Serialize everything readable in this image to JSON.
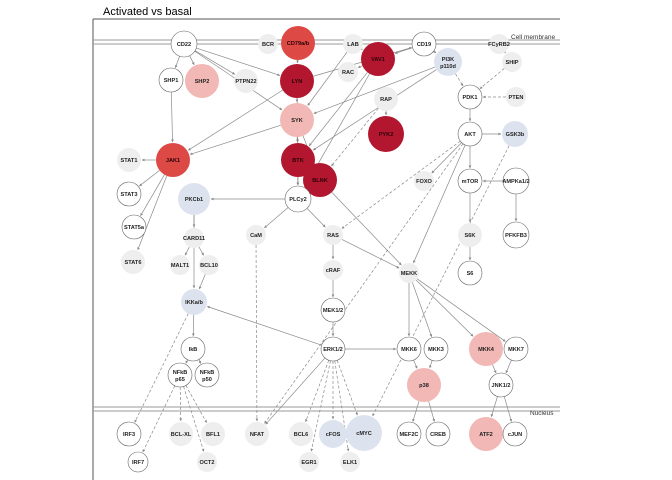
{
  "title": "Activated vs basal",
  "regions": {
    "membrane": "Cell membrane",
    "nucleus": "Nucleus"
  },
  "colors": {
    "white": "#ffffff",
    "grey": "#eeeeee",
    "blue": "#dde3ee",
    "pink_light": "#f1b8b5",
    "red_medium": "#dd4a45",
    "red_dark": "#b3172f",
    "stroke": "#666666"
  },
  "nodes": [
    {
      "id": "CD22",
      "label": "CD22",
      "fill": "white"
    },
    {
      "id": "BCR",
      "label": "BCR",
      "fill": "grey"
    },
    {
      "id": "CD79ab",
      "label": "CD79a/b",
      "fill": "red_medium"
    },
    {
      "id": "LAB",
      "label": "LAB",
      "fill": "grey"
    },
    {
      "id": "VAV1",
      "label": "VAV1",
      "fill": "red_dark"
    },
    {
      "id": "CD19",
      "label": "CD19",
      "fill": "white"
    },
    {
      "id": "PI3K",
      "label": "PI3K",
      "label2": "p110d",
      "fill": "blue"
    },
    {
      "id": "FCyRB2",
      "label": "FCyRB2",
      "fill": "grey"
    },
    {
      "id": "SHP1",
      "label": "SHP1",
      "fill": "white"
    },
    {
      "id": "SHP2",
      "label": "SHP2",
      "fill": "pink_light"
    },
    {
      "id": "PTPN22",
      "label": "PTPN22",
      "fill": "grey"
    },
    {
      "id": "LYN",
      "label": "LYN",
      "fill": "red_dark"
    },
    {
      "id": "RAC",
      "label": "RAC",
      "fill": "grey"
    },
    {
      "id": "SHIP",
      "label": "SHIP",
      "fill": "grey"
    },
    {
      "id": "PDK1",
      "label": "PDK1",
      "fill": "white"
    },
    {
      "id": "PTEN",
      "label": "PTEN",
      "fill": "grey"
    },
    {
      "id": "RAP",
      "label": "RAP",
      "fill": "grey"
    },
    {
      "id": "SYK",
      "label": "SYK",
      "fill": "pink_light"
    },
    {
      "id": "PYK2",
      "label": "PYK2",
      "fill": "red_dark"
    },
    {
      "id": "AKT",
      "label": "AKT",
      "fill": "white"
    },
    {
      "id": "GSK3b",
      "label": "GSK3b",
      "fill": "blue"
    },
    {
      "id": "STAT1",
      "label": "STAT1",
      "fill": "grey"
    },
    {
      "id": "JAK1",
      "label": "JAK1",
      "fill": "red_medium"
    },
    {
      "id": "BTK",
      "label": "BTK",
      "fill": "red_dark"
    },
    {
      "id": "BLNK",
      "label": "BLNK",
      "fill": "red_dark"
    },
    {
      "id": "FOXO",
      "label": "FOXO",
      "fill": "grey"
    },
    {
      "id": "mTOR",
      "label": "mTOR",
      "fill": "white"
    },
    {
      "id": "AMPKa12",
      "label": "AMPKa1/2",
      "fill": "white"
    },
    {
      "id": "STAT3",
      "label": "STAT3",
      "fill": "white"
    },
    {
      "id": "PKCb1",
      "label": "PKCb1",
      "fill": "blue"
    },
    {
      "id": "PLCy2",
      "label": "PLCy2",
      "fill": "white"
    },
    {
      "id": "STAT5a",
      "label": "STAT5a",
      "fill": "white"
    },
    {
      "id": "CARD11",
      "label": "CARD11",
      "fill": "grey"
    },
    {
      "id": "CaM",
      "label": "CaM",
      "fill": "grey"
    },
    {
      "id": "RAS",
      "label": "RAS",
      "fill": "grey"
    },
    {
      "id": "S6K",
      "label": "S6K",
      "fill": "grey"
    },
    {
      "id": "PFKFB3",
      "label": "PFKFB3",
      "fill": "white"
    },
    {
      "id": "STAT6",
      "label": "STAT6",
      "fill": "grey"
    },
    {
      "id": "MALT1",
      "label": "MALT1",
      "fill": "grey"
    },
    {
      "id": "BCL10",
      "label": "BCL10",
      "fill": "grey"
    },
    {
      "id": "cRAF",
      "label": "cRAF",
      "fill": "grey"
    },
    {
      "id": "MEKK",
      "label": "MEKK",
      "fill": "grey"
    },
    {
      "id": "S6",
      "label": "S6",
      "fill": "white"
    },
    {
      "id": "IKKab",
      "label": "IKKa/b",
      "fill": "blue"
    },
    {
      "id": "MEK12",
      "label": "MEK1/2",
      "fill": "white"
    },
    {
      "id": "IkB",
      "label": "IkB",
      "fill": "white"
    },
    {
      "id": "ERK12",
      "label": "ERK1/2",
      "fill": "white"
    },
    {
      "id": "MKK6",
      "label": "MKK6",
      "fill": "white"
    },
    {
      "id": "MKK3",
      "label": "MKK3",
      "fill": "white"
    },
    {
      "id": "MKK4",
      "label": "MKK4",
      "fill": "pink_light"
    },
    {
      "id": "MKK7",
      "label": "MKK7",
      "fill": "white"
    },
    {
      "id": "NFkBp65",
      "label": "NFkB",
      "label2": "p65",
      "fill": "white"
    },
    {
      "id": "NFkBp50",
      "label": "NFkB",
      "label2": "p50",
      "fill": "white"
    },
    {
      "id": "p38",
      "label": "p38",
      "fill": "pink_light"
    },
    {
      "id": "JNK12",
      "label": "JNK1/2",
      "fill": "white"
    },
    {
      "id": "IRF3",
      "label": "IRF3",
      "fill": "white"
    },
    {
      "id": "BCLXL",
      "label": "BCL-XL",
      "fill": "grey"
    },
    {
      "id": "BFL1",
      "label": "BFL1",
      "fill": "grey"
    },
    {
      "id": "NFAT",
      "label": "NFAT",
      "fill": "grey"
    },
    {
      "id": "BCL6",
      "label": "BCL6",
      "fill": "grey"
    },
    {
      "id": "cFOS",
      "label": "cFOS",
      "fill": "blue"
    },
    {
      "id": "cMYC",
      "label": "cMYC",
      "fill": "blue"
    },
    {
      "id": "MEF2C",
      "label": "MEF2C",
      "fill": "white"
    },
    {
      "id": "CREB",
      "label": "CREB",
      "fill": "white"
    },
    {
      "id": "ATF2",
      "label": "ATF2",
      "fill": "pink_light"
    },
    {
      "id": "cJUN",
      "label": "cJUN",
      "fill": "white"
    },
    {
      "id": "IRF7",
      "label": "IRF7",
      "fill": "white"
    },
    {
      "id": "OCT2",
      "label": "OCT2",
      "fill": "grey"
    },
    {
      "id": "EGR1",
      "label": "EGR1",
      "fill": "grey"
    },
    {
      "id": "ELK1",
      "label": "ELK1",
      "fill": "grey"
    }
  ],
  "edges": [
    {
      "from": "CD22",
      "to": "SHP1",
      "type": "solid"
    },
    {
      "from": "CD22",
      "to": "SHP2",
      "type": "solid"
    },
    {
      "from": "CD22",
      "to": "PTPN22",
      "type": "solid"
    },
    {
      "from": "CD22",
      "to": "LYN",
      "type": "solid"
    },
    {
      "from": "CD22",
      "to": "SYK",
      "type": "solid"
    },
    {
      "from": "CD79ab",
      "to": "LYN",
      "type": "solid"
    },
    {
      "from": "LYN",
      "to": "SYK",
      "type": "solid"
    },
    {
      "from": "LYN",
      "to": "CD19",
      "type": "solid"
    },
    {
      "from": "LYN",
      "to": "BTK",
      "type": "solid"
    },
    {
      "from": "LYN",
      "to": "JAK1",
      "type": "solid"
    },
    {
      "from": "CD19",
      "to": "PI3K",
      "type": "solid"
    },
    {
      "from": "CD19",
      "to": "VAV1",
      "type": "solid"
    },
    {
      "from": "LAB",
      "to": "VAV1",
      "type": "solid"
    },
    {
      "from": "LAB",
      "to": "SYK",
      "type": "solid"
    },
    {
      "from": "VAV1",
      "to": "RAC",
      "type": "solid"
    },
    {
      "from": "VAV1",
      "to": "BTK",
      "type": "solid"
    },
    {
      "from": "VAV1",
      "to": "PLCy2",
      "type": "solid"
    },
    {
      "from": "PI3K",
      "to": "PDK1",
      "type": "dashed"
    },
    {
      "from": "PI3K",
      "to": "SYK",
      "type": "solid"
    },
    {
      "from": "PI3K",
      "to": "BTK",
      "type": "solid"
    },
    {
      "from": "FCyRB2",
      "to": "SHIP",
      "type": "solid"
    },
    {
      "from": "SHIP",
      "to": "PDK1",
      "type": "dashed"
    },
    {
      "from": "PTEN",
      "to": "PDK1",
      "type": "dashed"
    },
    {
      "from": "PDK1",
      "to": "AKT",
      "type": "solid"
    },
    {
      "from": "AKT",
      "to": "GSK3b",
      "type": "solid"
    },
    {
      "from": "AKT",
      "to": "FOXO",
      "type": "solid"
    },
    {
      "from": "AKT",
      "to": "mTOR",
      "type": "solid"
    },
    {
      "from": "AKT",
      "to": "MEKK",
      "type": "solid"
    },
    {
      "from": "AKT",
      "to": "NFAT",
      "type": "dashed"
    },
    {
      "from": "AKT",
      "to": "RAS",
      "type": "dashed"
    },
    {
      "from": "AMPKa12",
      "to": "mTOR",
      "type": "solid"
    },
    {
      "from": "AMPKa12",
      "to": "PFKFB3",
      "type": "solid"
    },
    {
      "from": "mTOR",
      "to": "S6K",
      "type": "solid"
    },
    {
      "from": "S6K",
      "to": "S6",
      "type": "solid"
    },
    {
      "from": "GSK3b",
      "to": "cMYC",
      "type": "dashed"
    },
    {
      "from": "RAP",
      "to": "PYK2",
      "type": "solid"
    },
    {
      "from": "RAP",
      "to": "BLNK",
      "type": "dashed"
    },
    {
      "from": "SYK",
      "to": "BTK",
      "type": "solid"
    },
    {
      "from": "SYK",
      "to": "BLNK",
      "type": "solid"
    },
    {
      "from": "SYK",
      "to": "PLCy2",
      "type": "solid"
    },
    {
      "from": "SYK",
      "to": "JAK1",
      "type": "solid"
    },
    {
      "from": "BTK",
      "to": "PLCy2",
      "type": "solid"
    },
    {
      "from": "BLNK",
      "to": "PLCy2",
      "type": "solid"
    },
    {
      "from": "BLNK",
      "to": "MEKK",
      "type": "solid"
    },
    {
      "from": "PLCy2",
      "to": "PKCb1",
      "type": "solid"
    },
    {
      "from": "PLCy2",
      "to": "CaM",
      "type": "solid"
    },
    {
      "from": "PLCy2",
      "to": "RAS",
      "type": "solid"
    },
    {
      "from": "SHP1",
      "to": "JAK1",
      "type": "solid"
    },
    {
      "from": "JAK1",
      "to": "STAT1",
      "type": "solid"
    },
    {
      "from": "JAK1",
      "to": "STAT3",
      "type": "solid"
    },
    {
      "from": "JAK1",
      "to": "STAT5a",
      "type": "solid"
    },
    {
      "from": "JAK1",
      "to": "STAT6",
      "type": "solid"
    },
    {
      "from": "PKCb1",
      "to": "CARD11",
      "type": "solid"
    },
    {
      "from": "CARD11",
      "to": "MALT1",
      "type": "solid"
    },
    {
      "from": "CARD11",
      "to": "BCL10",
      "type": "solid"
    },
    {
      "from": "BCL10",
      "to": "IKKab",
      "type": "solid"
    },
    {
      "from": "PKCb1",
      "to": "IKKab",
      "type": "solid"
    },
    {
      "from": "IKKab",
      "to": "IkB",
      "type": "solid"
    },
    {
      "from": "IKKab",
      "to": "IRF3",
      "type": "dashed"
    },
    {
      "from": "IkB",
      "to": "NFkBp65",
      "type": "solid"
    },
    {
      "from": "IkB",
      "to": "NFkBp50",
      "type": "solid"
    },
    {
      "from": "NFkBp65",
      "to": "BCLXL",
      "type": "dashed"
    },
    {
      "from": "NFkBp65",
      "to": "BFL1",
      "type": "dashed"
    },
    {
      "from": "NFkBp65",
      "to": "OCT2",
      "type": "dashed"
    },
    {
      "from": "NFkBp65",
      "to": "IRF7",
      "type": "dashed"
    },
    {
      "from": "CaM",
      "to": "NFAT",
      "type": "dashed"
    },
    {
      "from": "RAS",
      "to": "cRAF",
      "type": "solid"
    },
    {
      "from": "RAS",
      "to": "MEKK",
      "type": "solid"
    },
    {
      "from": "cRAF",
      "to": "MEK12",
      "type": "solid"
    },
    {
      "from": "MEK12",
      "to": "ERK12",
      "type": "solid"
    },
    {
      "from": "ERK12",
      "to": "BCL6",
      "type": "dashed"
    },
    {
      "from": "ERK12",
      "to": "cFOS",
      "type": "dashed"
    },
    {
      "from": "ERK12",
      "to": "cMYC",
      "type": "dashed"
    },
    {
      "from": "ERK12",
      "to": "EGR1",
      "type": "dashed"
    },
    {
      "from": "ERK12",
      "to": "ELK1",
      "type": "dashed"
    },
    {
      "from": "ERK12",
      "to": "NFAT",
      "type": "solid"
    },
    {
      "from": "ERK12",
      "to": "MKK6",
      "type": "solid"
    },
    {
      "from": "ERK12",
      "to": "IKKab",
      "type": "solid"
    },
    {
      "from": "MEKK",
      "to": "MKK6",
      "type": "solid"
    },
    {
      "from": "MEKK",
      "to": "MKK3",
      "type": "solid"
    },
    {
      "from": "MEKK",
      "to": "MKK4",
      "type": "solid"
    },
    {
      "from": "MEKK",
      "to": "MKK7",
      "type": "solid"
    },
    {
      "from": "MKK6",
      "to": "p38",
      "type": "solid"
    },
    {
      "from": "MKK3",
      "to": "p38",
      "type": "solid"
    },
    {
      "from": "MKK4",
      "to": "JNK12",
      "type": "solid"
    },
    {
      "from": "MKK7",
      "to": "JNK12",
      "type": "solid"
    },
    {
      "from": "p38",
      "to": "MEF2C",
      "type": "solid"
    },
    {
      "from": "p38",
      "to": "CREB",
      "type": "solid"
    },
    {
      "from": "JNK12",
      "to": "ATF2",
      "type": "solid"
    },
    {
      "from": "JNK12",
      "to": "cJUN",
      "type": "solid"
    }
  ]
}
